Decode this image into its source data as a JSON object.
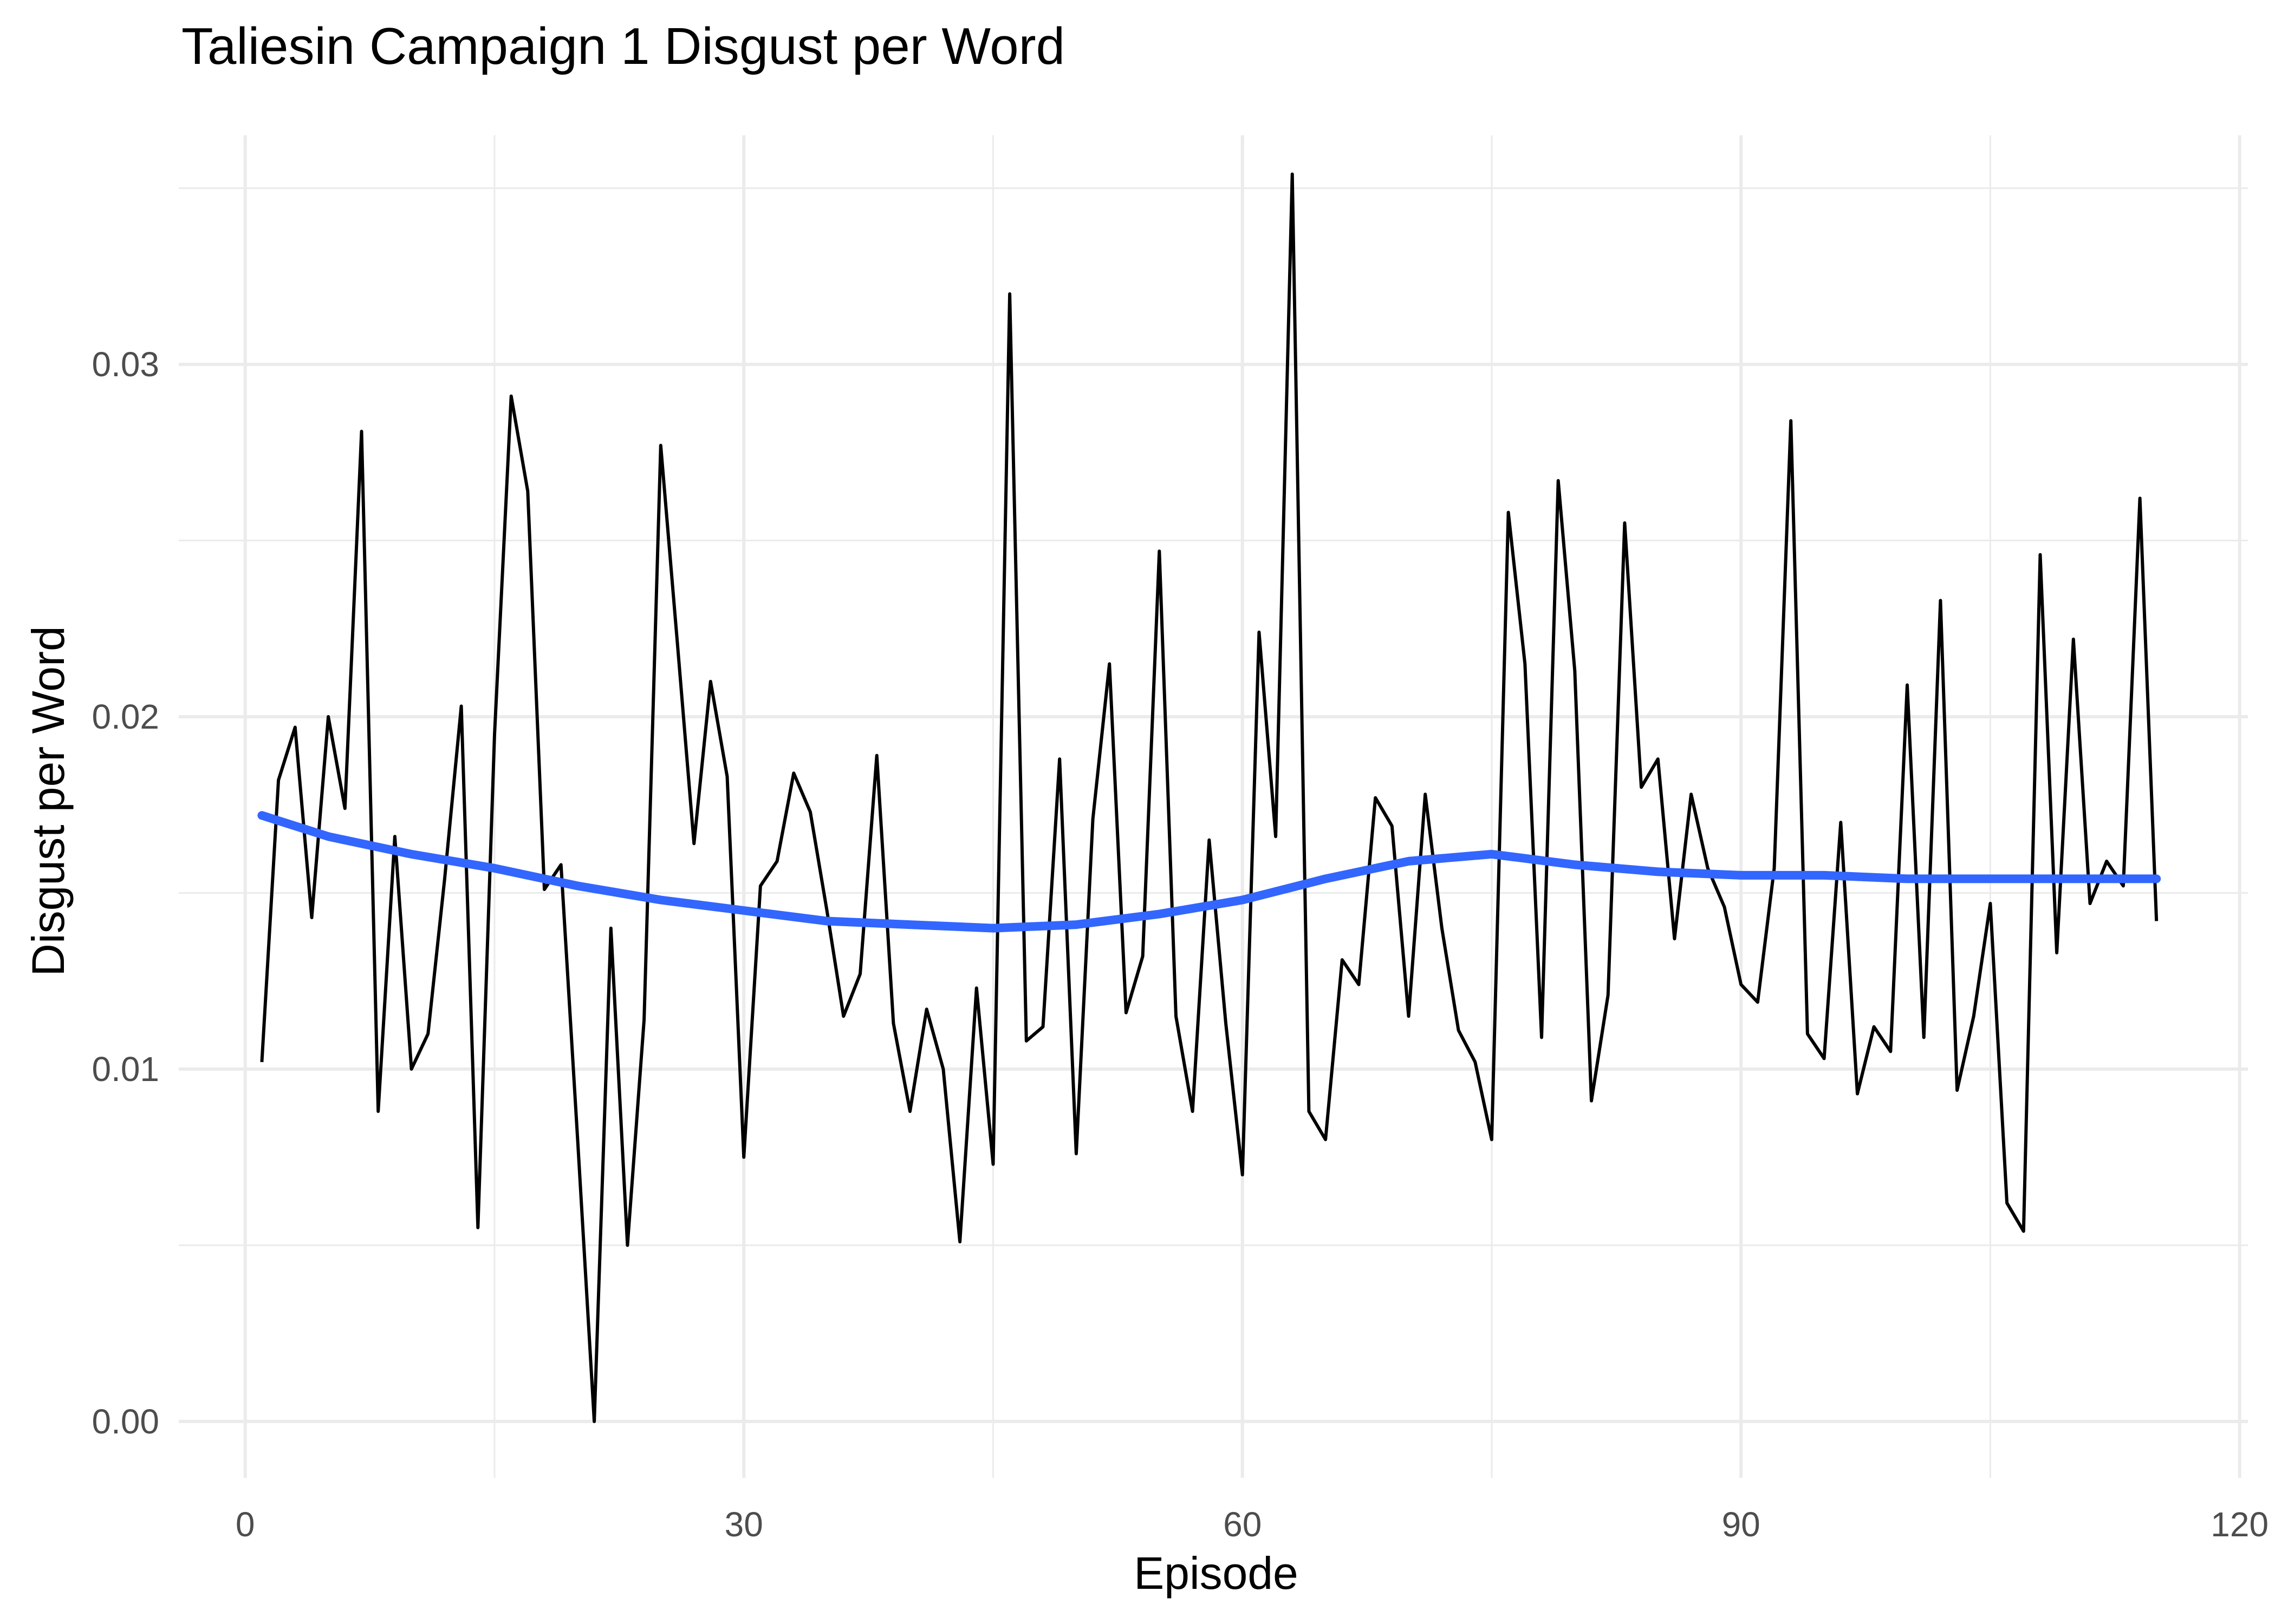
{
  "chart_data": {
    "type": "line",
    "title": "Taliesin Campaign 1 Disgust per Word",
    "xlabel": "Episode",
    "ylabel": "Disgust per Word",
    "xlim": [
      -4,
      120.5
    ],
    "ylim": [
      -0.0016,
      0.0365
    ],
    "xticks": [
      0,
      30,
      60,
      90,
      120
    ],
    "xtick_labels": [
      "0",
      "30",
      "60",
      "90",
      "120"
    ],
    "xminor": [
      15,
      45,
      75,
      105
    ],
    "yticks": [
      0,
      0.01,
      0.02,
      0.03
    ],
    "ytick_labels": [
      "0.00",
      "0.01",
      "0.02",
      "0.03"
    ],
    "yminor": [
      0.005,
      0.015,
      0.025,
      0.035
    ],
    "grid": true,
    "series": [
      {
        "role": "raw",
        "color": "#000000",
        "x": [
          1,
          2,
          3,
          4,
          5,
          6,
          7,
          8,
          9,
          10,
          11,
          12,
          13,
          14,
          15,
          16,
          17,
          18,
          19,
          20,
          21,
          22,
          23,
          24,
          25,
          26,
          27,
          28,
          29,
          30,
          31,
          32,
          33,
          34,
          35,
          36,
          37,
          38,
          39,
          40,
          41,
          42,
          43,
          44,
          45,
          46,
          47,
          48,
          49,
          50,
          51,
          52,
          53,
          54,
          55,
          56,
          57,
          58,
          59,
          60,
          61,
          62,
          63,
          64,
          65,
          66,
          67,
          68,
          69,
          70,
          71,
          72,
          73,
          74,
          75,
          76,
          77,
          78,
          79,
          80,
          81,
          82,
          83,
          84,
          85,
          86,
          87,
          88,
          89,
          90,
          91,
          92,
          93,
          94,
          95,
          96,
          97,
          98,
          99,
          100,
          101,
          102,
          103,
          104,
          105,
          106,
          107,
          108,
          109,
          110,
          111,
          112,
          113,
          114,
          115
        ],
        "values": [
          0.0102,
          0.0182,
          0.0197,
          0.0143,
          0.02,
          0.0174,
          0.0281,
          0.0088,
          0.0166,
          0.01,
          0.011,
          0.0154,
          0.0203,
          0.0055,
          0.0195,
          0.0291,
          0.0264,
          0.0151,
          0.0158,
          0.008,
          0.0,
          0.014,
          0.005,
          0.0114,
          0.0277,
          0.0221,
          0.0164,
          0.021,
          0.0183,
          0.0075,
          0.0152,
          0.0159,
          0.0184,
          0.0173,
          0.0145,
          0.0115,
          0.0127,
          0.0189,
          0.0113,
          0.0088,
          0.0117,
          0.01,
          0.0051,
          0.0123,
          0.0073,
          0.032,
          0.0108,
          0.0112,
          0.0188,
          0.0076,
          0.0171,
          0.0215,
          0.0116,
          0.0132,
          0.0247,
          0.0115,
          0.0088,
          0.0165,
          0.0113,
          0.007,
          0.0224,
          0.0166,
          0.0354,
          0.0088,
          0.008,
          0.0131,
          0.0124,
          0.0177,
          0.0169,
          0.0115,
          0.0178,
          0.014,
          0.0111,
          0.0102,
          0.008,
          0.0258,
          0.0215,
          0.0109,
          0.0267,
          0.0213,
          0.0091,
          0.0121,
          0.0255,
          0.018,
          0.0188,
          0.0137,
          0.0178,
          0.0157,
          0.0146,
          0.0124,
          0.0119,
          0.0157,
          0.0284,
          0.011,
          0.0103,
          0.017,
          0.0093,
          0.0112,
          0.0105,
          0.0209,
          0.0109,
          0.0233,
          0.0094,
          0.0115,
          0.0147,
          0.0062,
          0.0054,
          0.0246,
          0.0133,
          0.0222,
          0.0147,
          0.0159,
          0.0152,
          0.0262,
          0.0142
        ]
      },
      {
        "role": "smooth",
        "color": "#3366ff",
        "x": [
          1,
          5,
          10,
          15,
          20,
          25,
          30,
          35,
          40,
          45,
          50,
          55,
          60,
          65,
          70,
          75,
          80,
          85,
          90,
          95,
          100,
          105,
          110,
          115
        ],
        "values": [
          0.0172,
          0.0166,
          0.0161,
          0.0157,
          0.0152,
          0.0148,
          0.0145,
          0.0142,
          0.0141,
          0.014,
          0.0141,
          0.0144,
          0.0148,
          0.0154,
          0.0159,
          0.0161,
          0.0158,
          0.0156,
          0.0155,
          0.0155,
          0.0154,
          0.0154,
          0.0154,
          0.0154
        ]
      }
    ]
  }
}
